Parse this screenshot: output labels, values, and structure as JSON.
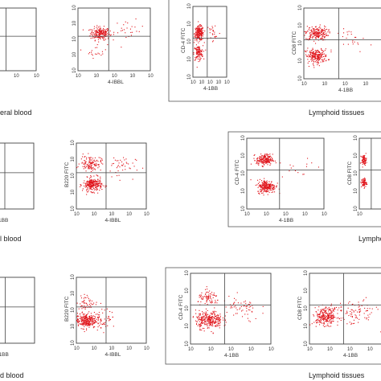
{
  "colors": {
    "dot": "#e0141b",
    "frame": "#555555",
    "axis": "#444444"
  },
  "captions": [
    {
      "id": "cap-peripheral-1",
      "text": "eral blood"
    },
    {
      "id": "cap-lymphoid-1",
      "text": "Lymphoid tissues"
    },
    {
      "id": "cap-peripheral-2",
      "text": "l blood"
    },
    {
      "id": "cap-lymphoid-2",
      "text": "Lympho"
    },
    {
      "id": "cap-peripheral-3",
      "text": "d blood"
    },
    {
      "id": "cap-lymphoid-3",
      "text": "Lymphoid tissues"
    }
  ],
  "chart_data": [
    {
      "type": "scatter",
      "name": "row1-partial-left",
      "xlabel": "",
      "ylabel": "",
      "xticks": [
        "10",
        "10",
        "10",
        "10"
      ],
      "yticks": [],
      "xlim_log": [
        0,
        4
      ],
      "ylim_log": [
        0,
        4
      ],
      "gates": {
        "x": 2,
        "y": 2.2
      },
      "clusters": [
        {
          "x": 0.2,
          "y": 1.9,
          "n": 10,
          "spread": 0.3
        }
      ]
    },
    {
      "type": "scatter",
      "name": "row1-b220-4ibbl",
      "xlabel": "4-IBBL",
      "ylabel": "",
      "xticks": [
        "10",
        "10",
        "10",
        "10",
        "10"
      ],
      "yticks": [
        "10",
        "10",
        "10",
        "10",
        "10"
      ],
      "xlim_log": [
        0,
        4
      ],
      "ylim_log": [
        0,
        4
      ],
      "gates": {
        "x": 1.7,
        "y": 2.2
      },
      "clusters": [
        {
          "x": 1.2,
          "y": 2.4,
          "n": 220,
          "spread": 0.45
        },
        {
          "x": 1.0,
          "y": 1.3,
          "n": 20,
          "spread": 0.5
        },
        {
          "x": 2.8,
          "y": 2.6,
          "n": 25,
          "spread": 0.7
        }
      ]
    },
    {
      "type": "scatter",
      "name": "row1-cd4-4ibb",
      "xlabel": "4-1BB",
      "ylabel": "CD-4 FITC",
      "xticks": [
        "10",
        "10",
        "10",
        "10",
        "10"
      ],
      "yticks": [
        "10",
        "10",
        "10",
        "10",
        "10"
      ],
      "xlim_log": [
        0,
        4
      ],
      "ylim_log": [
        0,
        4
      ],
      "gates": {
        "x": 1.7,
        "y": 2.2
      },
      "clusters": [
        {
          "x": 0.7,
          "y": 2.5,
          "n": 220,
          "spread": 0.45
        },
        {
          "x": 0.6,
          "y": 1.4,
          "n": 120,
          "spread": 0.45
        },
        {
          "x": 2.4,
          "y": 2.5,
          "n": 25,
          "spread": 0.7
        }
      ]
    },
    {
      "type": "scatter",
      "name": "row1-cd8-4ibb",
      "xlabel": "4-1BB",
      "ylabel": "CD8 FITC",
      "xticks": [
        "10",
        "10",
        "10",
        "10",
        "10"
      ],
      "yticks": [
        "10",
        "10",
        "10",
        "10",
        "10"
      ],
      "xlim_log": [
        0,
        4
      ],
      "ylim_log": [
        0,
        4
      ],
      "gates": {
        "x": 1.7,
        "y": 2.2
      },
      "clusters": [
        {
          "x": 0.6,
          "y": 2.6,
          "n": 200,
          "spread": 0.45
        },
        {
          "x": 0.6,
          "y": 1.3,
          "n": 220,
          "spread": 0.45
        },
        {
          "x": 2.5,
          "y": 2.2,
          "n": 25,
          "spread": 0.7
        }
      ]
    },
    {
      "type": "scatter",
      "name": "row2-partial-left",
      "xlabel": "1BB",
      "ylabel": "",
      "xticks": [],
      "yticks": [],
      "xlim_log": [
        0,
        4
      ],
      "ylim_log": [
        0,
        4
      ],
      "gates": {
        "x": 2,
        "y": 2.2
      },
      "clusters": [
        {
          "x": 0.2,
          "y": 2.0,
          "n": 8,
          "spread": 0.3
        }
      ]
    },
    {
      "type": "scatter",
      "name": "row2-b220-4ibbl",
      "xlabel": "4-IBBL",
      "ylabel": "B220 FITC",
      "xticks": [
        "10",
        "10",
        "10",
        "10",
        "10"
      ],
      "yticks": [
        "10",
        "10",
        "10",
        "10",
        "10"
      ],
      "xlim_log": [
        0,
        4
      ],
      "ylim_log": [
        0,
        4
      ],
      "gates": {
        "x": 1.7,
        "y": 2.2
      },
      "clusters": [
        {
          "x": 0.9,
          "y": 1.5,
          "n": 250,
          "spread": 0.45
        },
        {
          "x": 0.8,
          "y": 2.8,
          "n": 120,
          "spread": 0.5
        },
        {
          "x": 2.4,
          "y": 2.6,
          "n": 45,
          "spread": 0.8
        }
      ]
    },
    {
      "type": "scatter",
      "name": "row2-cd4-4ibb",
      "xlabel": "4-1BB",
      "ylabel": "CD-4 FITC",
      "xticks": [
        "10",
        "10",
        "10",
        "10",
        "10"
      ],
      "yticks": [
        "10",
        "10",
        "10",
        "10",
        "10"
      ],
      "xlim_log": [
        0,
        4
      ],
      "ylim_log": [
        0,
        4
      ],
      "gates": {
        "x": 1.7,
        "y": 2.2
      },
      "clusters": [
        {
          "x": 0.9,
          "y": 2.8,
          "n": 200,
          "spread": 0.35
        },
        {
          "x": 1.0,
          "y": 1.3,
          "n": 240,
          "spread": 0.4
        },
        {
          "x": 2.6,
          "y": 2.4,
          "n": 15,
          "spread": 0.7
        }
      ]
    },
    {
      "type": "scatter",
      "name": "row2-cd8-partial",
      "xlabel": "",
      "ylabel": "CD8 FITC",
      "xticks": [
        "10",
        "10"
      ],
      "yticks": [
        "10",
        "10",
        "10",
        "10",
        "10"
      ],
      "xlim_log": [
        0,
        4
      ],
      "ylim_log": [
        0,
        4
      ],
      "gates": {
        "x": 1.7,
        "y": 2.2
      },
      "clusters": [
        {
          "x": 0.6,
          "y": 2.8,
          "n": 70,
          "spread": 0.3
        },
        {
          "x": 0.6,
          "y": 1.5,
          "n": 70,
          "spread": 0.3
        }
      ]
    },
    {
      "type": "scatter",
      "name": "row3-partial-left",
      "xlabel": "1BB",
      "ylabel": "",
      "xticks": [],
      "yticks": [],
      "xlim_log": [
        0,
        4
      ],
      "ylim_log": [
        0,
        4
      ],
      "gates": {
        "x": 2,
        "y": 2.2
      },
      "clusters": [
        {
          "x": 0.2,
          "y": 1.6,
          "n": 8,
          "spread": 0.3
        }
      ]
    },
    {
      "type": "scatter",
      "name": "row3-b220-4ibbl",
      "xlabel": "4-IBBL",
      "ylabel": "B220 FITC",
      "xticks": [
        "10",
        "10",
        "10",
        "10",
        "10"
      ],
      "yticks": [
        "10",
        "10",
        "10",
        "10",
        "10"
      ],
      "xlim_log": [
        0,
        4
      ],
      "ylim_log": [
        0,
        4
      ],
      "gates": {
        "x": 1.7,
        "y": 2.2
      },
      "clusters": [
        {
          "x": 0.5,
          "y": 1.4,
          "n": 280,
          "spread": 0.5
        },
        {
          "x": 1.5,
          "y": 1.5,
          "n": 60,
          "spread": 0.6
        },
        {
          "x": 0.6,
          "y": 2.5,
          "n": 50,
          "spread": 0.5
        }
      ]
    },
    {
      "type": "scatter",
      "name": "row3-cd4-4ibb",
      "xlabel": "4-1BB",
      "ylabel": "CD-4 FITC",
      "xticks": [
        "10",
        "10",
        "10",
        "10",
        "10"
      ],
      "yticks": [
        "10",
        "10",
        "10",
        "10",
        "10"
      ],
      "xlim_log": [
        0,
        4
      ],
      "ylim_log": [
        0,
        4
      ],
      "gates": {
        "x": 1.7,
        "y": 2.2
      },
      "clusters": [
        {
          "x": 0.9,
          "y": 1.4,
          "n": 300,
          "spread": 0.55
        },
        {
          "x": 0.9,
          "y": 2.6,
          "n": 80,
          "spread": 0.45
        },
        {
          "x": 2.5,
          "y": 2.0,
          "n": 60,
          "spread": 0.8
        }
      ]
    },
    {
      "type": "scatter",
      "name": "row3-cd8-4ibb",
      "xlabel": "4-1BB",
      "ylabel": "CD8 FITC",
      "xticks": [
        "10",
        "10",
        "10",
        "10",
        "10"
      ],
      "yticks": [
        "10",
        "10",
        "10",
        "10",
        "10"
      ],
      "xlim_log": [
        0,
        4
      ],
      "ylim_log": [
        0,
        4
      ],
      "gates": {
        "x": 1.7,
        "y": 2.2
      },
      "clusters": [
        {
          "x": 0.8,
          "y": 1.6,
          "n": 260,
          "spread": 0.55
        },
        {
          "x": 2.3,
          "y": 1.8,
          "n": 80,
          "spread": 0.8
        }
      ]
    }
  ]
}
